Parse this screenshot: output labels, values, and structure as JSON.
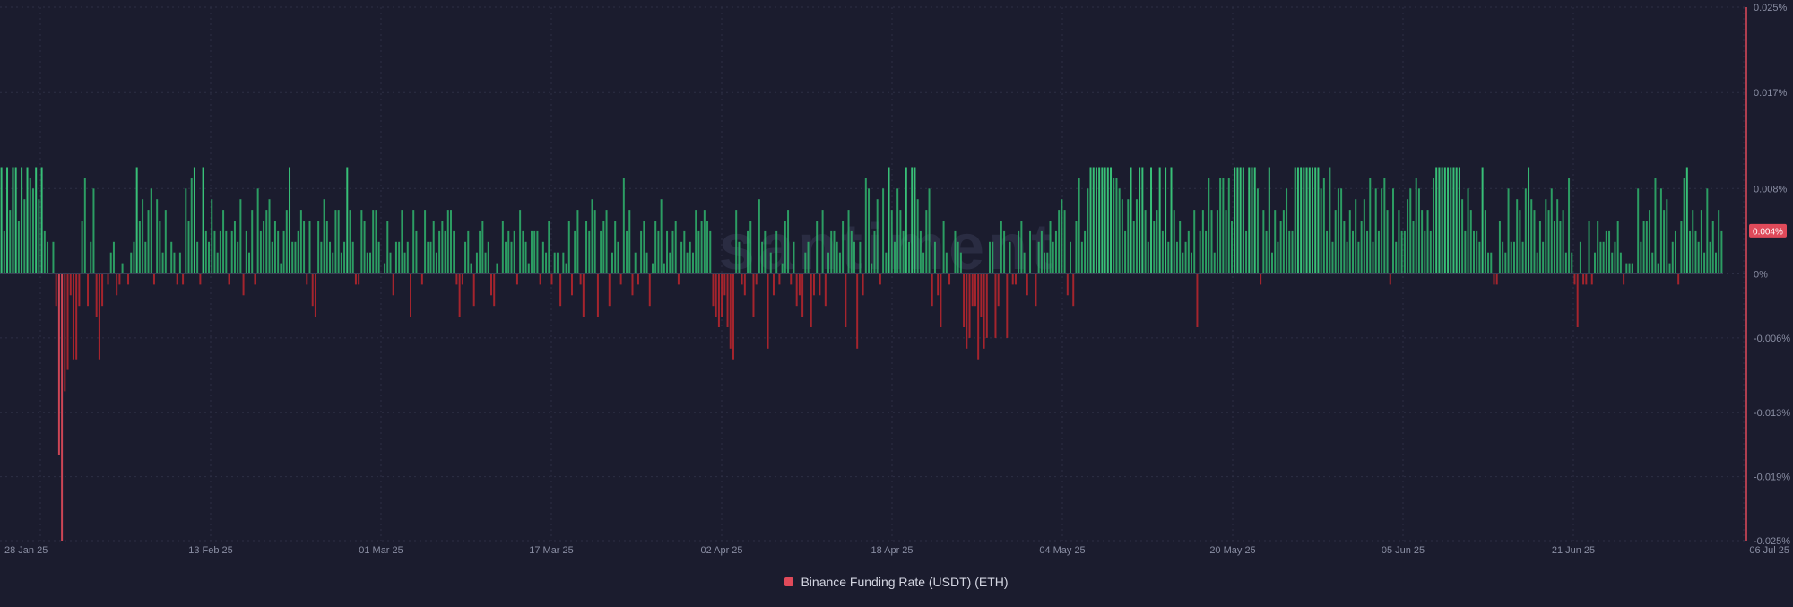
{
  "colors": {
    "background": "#1b1c2e",
    "positive_bar": "#2fb46c",
    "positive_bar_bright": "#3ddc84",
    "negative_bar": "#b5262e",
    "axis_line": "#e04a5a",
    "grid": "#2c2e44",
    "badge": "#e04a5a",
    "legend_swatch": "#e04a5a"
  },
  "watermark": "santiment",
  "legend": {
    "label": "Binance Funding Rate (USDT) (ETH)",
    "swatch_color": "#e04a5a"
  },
  "current_value_badge": "0.004%",
  "chart_data": {
    "type": "bar",
    "title": "",
    "xlabel": "",
    "ylabel": "",
    "x_range": [
      "28 Jan 25",
      "06 Jul 25"
    ],
    "x_tick_labels": [
      "28 Jan 25",
      "13 Feb 25",
      "01 Mar 25",
      "17 Mar 25",
      "02 Apr 25",
      "18 Apr 25",
      "04 May 25",
      "20 May 25",
      "05 Jun 25",
      "21 Jun 25",
      "06 Jul 25"
    ],
    "y_ticks": [
      0.025,
      0.017,
      0.008,
      0,
      -0.006,
      -0.013,
      -0.019,
      -0.025
    ],
    "y_tick_labels": [
      "0.025%",
      "0.017%",
      "0.008%",
      "0%",
      "-0.006%",
      "-0.013%",
      "-0.019%",
      "-0.025%"
    ],
    "ylim": [
      -0.025,
      0.025
    ],
    "grid": true,
    "legend_position": "bottom-center",
    "current_value": 0.004,
    "series": [
      {
        "name": "Binance Funding Rate (USDT) (ETH)",
        "interval": "8h",
        "start": "28 Jan 25",
        "values": [
          0.01,
          0.004,
          0.01,
          0.006,
          0.01,
          0.01,
          0.005,
          0.01,
          0.007,
          0.01,
          0.009,
          0.008,
          0.01,
          0.007,
          0.01,
          0.004,
          0.003,
          0.0,
          0.003,
          -0.003,
          -0.017,
          -0.025,
          -0.011,
          -0.009,
          -0.002,
          -0.008,
          -0.008,
          -0.003,
          0.005,
          0.009,
          -0.003,
          0.003,
          0.008,
          -0.004,
          -0.008,
          -0.003,
          0.0,
          -0.001,
          0.002,
          0.003,
          -0.002,
          -0.001,
          0.001,
          0.0,
          -0.001,
          0.002,
          0.003,
          0.01,
          0.005,
          0.007,
          0.003,
          0.006,
          0.008,
          -0.001,
          0.007,
          0.005,
          0.002,
          0.006,
          0.0,
          0.003,
          0.002,
          -0.001,
          0.002,
          -0.001,
          0.008,
          0.005,
          0.009,
          0.01,
          0.003,
          -0.001,
          0.01,
          0.004,
          0.003,
          0.007,
          0.004,
          0.002,
          0.004,
          0.006,
          0.004,
          -0.001,
          0.004,
          0.005,
          0.003,
          0.007,
          -0.002,
          0.004,
          0.002,
          0.006,
          -0.001,
          0.008,
          0.004,
          0.005,
          0.006,
          0.007,
          0.003,
          0.005,
          0.004,
          0.001,
          0.004,
          0.006,
          0.01,
          0.003,
          0.003,
          0.004,
          0.006,
          0.005,
          -0.001,
          0.005,
          -0.003,
          -0.004,
          0.005,
          0.003,
          0.007,
          0.005,
          0.003,
          0.002,
          0.006,
          0.006,
          0.002,
          0.003,
          0.01,
          0.006,
          0.003,
          -0.001,
          -0.001,
          0.006,
          0.005,
          0.002,
          0.002,
          0.006,
          0.006,
          0.003,
          0.0,
          0.001,
          0.005,
          0.002,
          -0.002,
          0.003,
          0.003,
          0.006,
          0.002,
          0.003,
          -0.004,
          0.006,
          0.004,
          0.0,
          -0.001,
          0.006,
          0.003,
          0.003,
          0.005,
          0.002,
          0.004,
          0.005,
          0.004,
          0.006,
          0.006,
          0.004,
          -0.001,
          -0.004,
          -0.001,
          0.003,
          0.004,
          0.001,
          -0.003,
          0.002,
          0.004,
          0.005,
          0.002,
          0.003,
          -0.002,
          -0.003,
          0.001,
          0.0,
          0.005,
          0.003,
          0.004,
          0.003,
          0.004,
          -0.001,
          0.006,
          0.004,
          0.003,
          0.001,
          0.004,
          0.004,
          0.004,
          -0.001,
          0.003,
          0.002,
          0.005,
          -0.001,
          0.002,
          0.002,
          -0.003,
          0.002,
          0.001,
          0.005,
          -0.002,
          0.004,
          0.006,
          -0.001,
          -0.004,
          0.005,
          0.004,
          0.007,
          0.006,
          -0.004,
          0.004,
          0.005,
          0.006,
          -0.003,
          0.002,
          0.005,
          0.003,
          -0.001,
          0.009,
          0.004,
          0.006,
          -0.002,
          0.002,
          -0.001,
          0.004,
          0.005,
          0.002,
          -0.003,
          0.001,
          0.005,
          0.004,
          0.007,
          0.001,
          0.004,
          0.002,
          0.004,
          0.005,
          -0.001,
          0.003,
          0.004,
          0.002,
          0.003,
          0.002,
          0.006,
          0.004,
          0.005,
          0.006,
          0.005,
          0.004,
          -0.003,
          -0.004,
          -0.005,
          -0.004,
          -0.002,
          -0.005,
          -0.007,
          -0.008,
          0.006,
          0.003,
          -0.001,
          -0.002,
          0.004,
          0.005,
          -0.004,
          -0.001,
          0.007,
          0.003,
          0.004,
          -0.007,
          0.002,
          -0.002,
          0.004,
          -0.001,
          0.001,
          0.005,
          0.006,
          -0.001,
          0.003,
          -0.003,
          -0.002,
          -0.004,
          0.002,
          0.003,
          -0.005,
          -0.002,
          0.005,
          -0.002,
          0.006,
          -0.003,
          0.002,
          0.004,
          0.004,
          0.003,
          0.002,
          0.005,
          -0.005,
          0.006,
          0.004,
          0.003,
          -0.007,
          0.003,
          -0.002,
          0.009,
          0.008,
          0.001,
          0.004,
          0.007,
          -0.001,
          0.008,
          0.002,
          0.01,
          0.006,
          0.003,
          0.008,
          0.006,
          0.004,
          0.01,
          0.003,
          0.01,
          0.01,
          0.007,
          0.004,
          0.002,
          0.006,
          0.008,
          -0.003,
          0.003,
          -0.002,
          -0.005,
          0.005,
          0.002,
          -0.001,
          0.0,
          0.004,
          0.003,
          0.002,
          -0.005,
          -0.007,
          -0.006,
          -0.003,
          -0.003,
          -0.008,
          -0.004,
          -0.007,
          -0.006,
          0.003,
          0.003,
          -0.006,
          -0.003,
          0.005,
          0.004,
          -0.006,
          0.003,
          -0.001,
          -0.001,
          0.004,
          0.005,
          0.002,
          -0.002,
          0.004,
          0.0,
          -0.003,
          0.003,
          0.004,
          0.002,
          0.002,
          0.005,
          0.003,
          0.004,
          0.006,
          0.007,
          0.006,
          -0.002,
          0.003,
          -0.003,
          0.005,
          0.009,
          0.003,
          0.004,
          0.008,
          0.01,
          0.01,
          0.01,
          0.01,
          0.01,
          0.01,
          0.01,
          0.01,
          0.009,
          0.009,
          0.008,
          0.007,
          0.004,
          0.007,
          0.01,
          0.005,
          0.007,
          0.01,
          0.01,
          0.006,
          0.003,
          0.01,
          0.005,
          0.006,
          0.01,
          0.004,
          0.01,
          0.003,
          0.01,
          0.006,
          0.003,
          0.005,
          0.002,
          0.003,
          0.004,
          0.002,
          0.006,
          -0.005,
          0.004,
          0.006,
          0.004,
          0.009,
          0.006,
          0.002,
          0.006,
          0.009,
          0.009,
          0.006,
          0.009,
          0.005,
          0.01,
          0.01,
          0.01,
          0.01,
          0.004,
          0.01,
          0.01,
          0.01,
          0.008,
          -0.001,
          0.006,
          0.004,
          0.01,
          0.002,
          0.006,
          0.003,
          0.005,
          0.006,
          0.008,
          0.004,
          0.004,
          0.01,
          0.01,
          0.01,
          0.01,
          0.01,
          0.01,
          0.01,
          0.01,
          0.01,
          0.008,
          0.009,
          0.004,
          0.01,
          0.003,
          0.006,
          0.008,
          0.008,
          0.005,
          0.003,
          0.006,
          0.004,
          0.007,
          0.003,
          0.005,
          0.007,
          0.004,
          0.009,
          0.003,
          0.008,
          0.004,
          0.008,
          0.009,
          0.006,
          -0.001,
          0.008,
          0.003,
          0.006,
          0.004,
          0.004,
          0.007,
          0.008,
          0.005,
          0.009,
          0.008,
          0.006,
          0.004,
          0.006,
          0.004,
          0.009,
          0.01,
          0.01,
          0.01,
          0.01,
          0.01,
          0.01,
          0.01,
          0.01,
          0.01,
          0.007,
          0.004,
          0.008,
          0.006,
          0.004,
          0.004,
          0.003,
          0.01,
          0.006,
          0.002,
          0.002,
          -0.001,
          -0.001,
          0.005,
          0.003,
          0.002,
          0.008,
          0.003,
          0.003,
          0.007,
          0.006,
          0.003,
          0.008,
          0.01,
          0.007,
          0.006,
          0.002,
          0.005,
          0.003,
          0.007,
          0.006,
          0.008,
          0.005,
          0.007,
          0.005,
          0.006,
          0.002,
          0.009,
          0.002,
          -0.001,
          -0.005,
          0.003,
          -0.001,
          -0.001,
          0.005,
          -0.001,
          0.002,
          0.005,
          0.003,
          0.003,
          0.004,
          0.004,
          0.002,
          0.003,
          0.005,
          0.002,
          -0.001,
          0.001,
          0.001,
          0.001,
          0.0,
          0.008,
          0.003,
          0.005,
          0.005,
          0.006,
          0.002,
          0.009,
          0.001,
          0.008,
          0.006,
          0.007,
          0.001,
          0.003,
          0.004,
          -0.001,
          0.005,
          0.009,
          0.01,
          0.004,
          0.006,
          0.004,
          0.003,
          0.006,
          0.002,
          0.008,
          0.003,
          0.005,
          0.002,
          0.006,
          0.004
        ]
      }
    ]
  }
}
